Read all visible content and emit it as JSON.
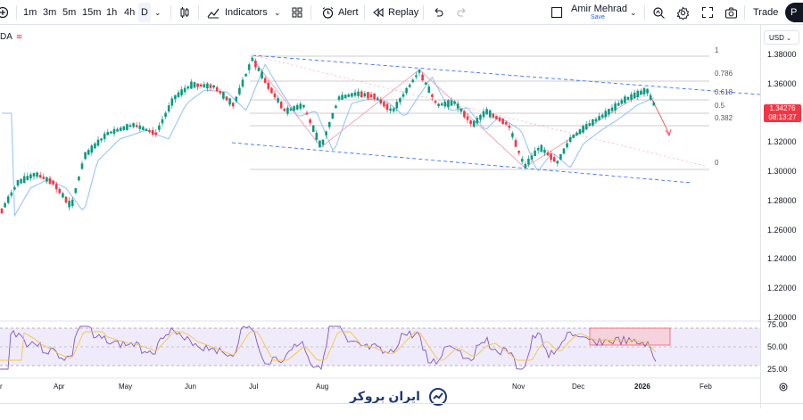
{
  "toolbar": {
    "timeframes": [
      "1m",
      "3m",
      "5m",
      "15m",
      "1h",
      "4h",
      "D"
    ],
    "active_timeframe": "D",
    "indicators_label": "Indicators",
    "alert_label": "Alert",
    "replay_label": "Replay",
    "user_name": "Amir Mehrad",
    "save_label": "Save",
    "trade_label": "Trade",
    "publish_label": "P"
  },
  "chart": {
    "symbol": "DA",
    "currency": "USD",
    "current_price": "1.34276",
    "countdown": "08:13:27",
    "price_labels": [
      "1.38000",
      "1.36000",
      "1.34000",
      "1.32000",
      "1.30000",
      "1.28000",
      "1.26000",
      "1.24000",
      "1.22000",
      "1.20000"
    ],
    "fib_levels": [
      "1",
      "0.786",
      "0.618",
      "0.5",
      "0.382",
      "0"
    ],
    "x_labels": [
      "r",
      "Apr",
      "May",
      "Jun",
      "Jul",
      "Aug",
      "Nov",
      "Dec",
      "2026",
      "Feb"
    ],
    "rsi_labels": [
      "75.00",
      "50.00",
      "25.00"
    ],
    "colors": {
      "up": "#089981",
      "down": "#f23645",
      "ma": "#90bff9",
      "trend": "#2962ff",
      "rsi": "#7e57c2",
      "rsi_ma": "#f7c548"
    }
  },
  "watermark": {
    "text": "ایران بروکر"
  }
}
